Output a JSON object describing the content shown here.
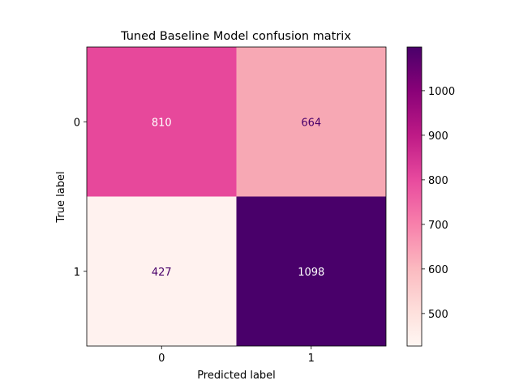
{
  "chart_data": {
    "type": "heatmap",
    "title": "Tuned Baseline Model confusion matrix",
    "xlabel": "Predicted label",
    "ylabel": "True label",
    "x_categories": [
      "0",
      "1"
    ],
    "y_categories": [
      "0",
      "1"
    ],
    "values": [
      [
        810,
        664
      ],
      [
        427,
        1098
      ]
    ],
    "colormap": "RdPu",
    "color_range": [
      427,
      1098
    ],
    "colorbar_ticks": [
      500,
      600,
      700,
      800,
      900,
      1000
    ],
    "cell_colors": [
      [
        "#e7489b",
        "#f7a8b4"
      ],
      [
        "#fff2ef",
        "#49006a"
      ]
    ],
    "text_colors": [
      [
        "#ffffff",
        "#49006a"
      ],
      [
        "#49006a",
        "#ffffff"
      ]
    ],
    "colorbar_stops": [
      {
        "value": 427,
        "color": "#fff7f3"
      },
      {
        "value": 500,
        "color": "#fee1dd"
      },
      {
        "value": 600,
        "color": "#fbbac0"
      },
      {
        "value": 700,
        "color": "#f880ab"
      },
      {
        "value": 800,
        "color": "#e84a9e"
      },
      {
        "value": 900,
        "color": "#be1a86"
      },
      {
        "value": 1000,
        "color": "#890178"
      },
      {
        "value": 1098,
        "color": "#49006a"
      }
    ],
    "grid": false
  }
}
